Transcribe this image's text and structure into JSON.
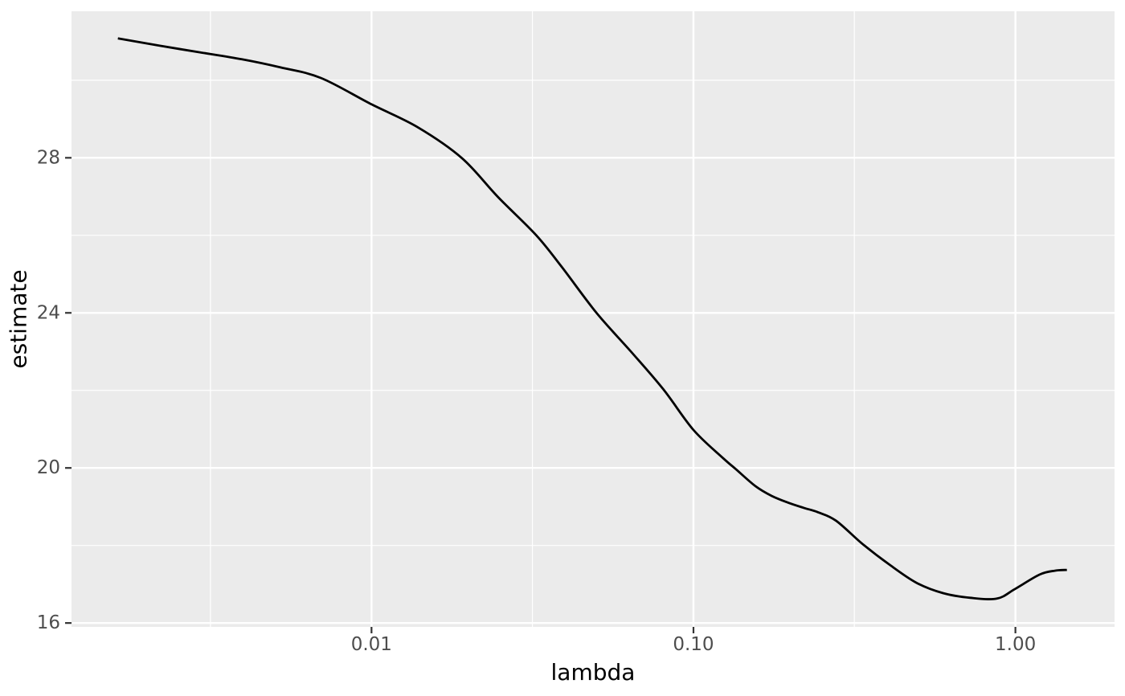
{
  "figure": {
    "background_color": "#FFFFFF"
  },
  "chart_data": {
    "type": "line",
    "title": "",
    "xlabel": "lambda",
    "ylabel": "estimate",
    "x_scale": "log10",
    "xlim": [
      0.00117,
      2.032
    ],
    "ylim": [
      15.9,
      31.78
    ],
    "x_ticks": [
      {
        "value": 0.01,
        "label": "0.01"
      },
      {
        "value": 0.1,
        "label": "0.10"
      },
      {
        "value": 1.0,
        "label": "1.00"
      }
    ],
    "x_minor_gridlines": [
      0.00316,
      0.0316,
      0.316
    ],
    "y_ticks": [
      {
        "value": 16,
        "label": "16"
      },
      {
        "value": 20,
        "label": "20"
      },
      {
        "value": 24,
        "label": "24"
      },
      {
        "value": 28,
        "label": "28"
      }
    ],
    "y_minor_gridlines": [
      18,
      22,
      26,
      30
    ],
    "grid": true,
    "legend_position": "none",
    "style": {
      "panel_background": "#EBEBEB",
      "gridline_color": "#FFFFFF",
      "major_grid_width": 2.4,
      "minor_grid_width": 1.2,
      "line_color": "#000000",
      "line_width": 2.8,
      "tick_mark_color": "#333333",
      "tick_label_color": "#4D4D4D",
      "axis_title_color": "#000000"
    },
    "series": [
      {
        "name": "estimate",
        "points": [
          [
            0.00163,
            31.08
          ],
          [
            0.0022,
            30.89
          ],
          [
            0.00293,
            30.72
          ],
          [
            0.00396,
            30.54
          ],
          [
            0.00522,
            30.33
          ],
          [
            0.00696,
            30.06
          ],
          [
            0.01,
            29.38
          ],
          [
            0.0139,
            28.79
          ],
          [
            0.0191,
            27.99
          ],
          [
            0.0247,
            26.99
          ],
          [
            0.0325,
            26.0
          ],
          [
            0.0391,
            25.17
          ],
          [
            0.0501,
            23.99
          ],
          [
            0.0638,
            23.01
          ],
          [
            0.0804,
            22.04
          ],
          [
            0.1,
            20.98
          ],
          [
            0.1237,
            20.25
          ],
          [
            0.1349,
            19.98
          ],
          [
            0.1558,
            19.53
          ],
          [
            0.1748,
            19.28
          ],
          [
            0.196,
            19.11
          ],
          [
            0.22,
            18.97
          ],
          [
            0.243,
            18.86
          ],
          [
            0.277,
            18.64
          ],
          [
            0.335,
            18.04
          ],
          [
            0.407,
            17.5
          ],
          [
            0.492,
            17.04
          ],
          [
            0.596,
            16.77
          ],
          [
            0.724,
            16.65
          ],
          [
            0.876,
            16.63
          ],
          [
            0.994,
            16.87
          ],
          [
            1.189,
            17.25
          ],
          [
            1.326,
            17.35
          ],
          [
            1.445,
            17.37
          ]
        ]
      }
    ]
  }
}
